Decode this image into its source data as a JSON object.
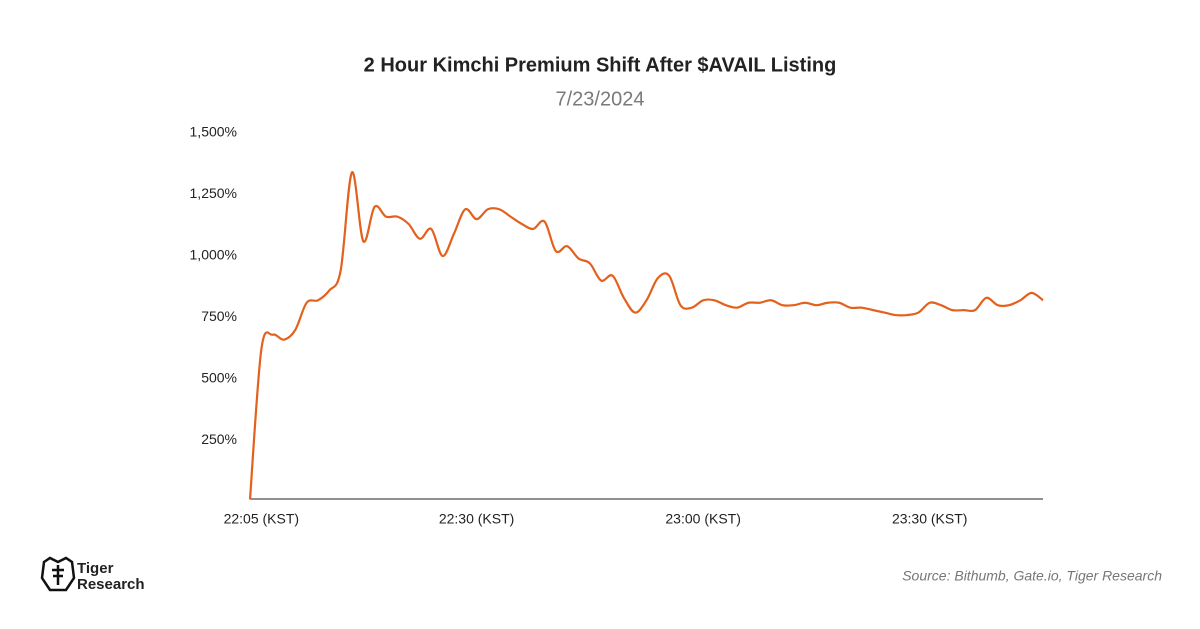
{
  "chart_data": {
    "type": "line",
    "title": "2 Hour Kimchi Premium Shift After $AVAIL Listing",
    "subtitle": "7/23/2024",
    "categories": [
      null,
      "22:05 (KST)",
      null,
      null,
      null,
      null,
      null,
      null,
      null,
      null,
      null,
      null,
      null,
      null,
      null,
      null,
      null,
      null,
      null,
      null,
      "22:30 (KST)",
      null,
      null,
      null,
      null,
      null,
      null,
      null,
      null,
      null,
      null,
      null,
      null,
      null,
      null,
      null,
      null,
      null,
      null,
      null,
      "23:00 (KST)",
      null,
      null,
      null,
      null,
      null,
      null,
      null,
      null,
      null,
      null,
      null,
      null,
      null,
      null,
      null,
      null,
      null,
      null,
      null,
      "23:30 (KST)",
      null,
      null,
      null,
      null,
      null,
      null,
      null,
      null,
      null,
      null
    ],
    "series": [
      {
        "color": "#e3611c",
        "values": [
          10,
          620,
          680,
          660,
          700,
          810,
          820,
          860,
          940,
          1340,
          1060,
          1200,
          1160,
          1160,
          1130,
          1070,
          1110,
          1000,
          1090,
          1190,
          1150,
          1190,
          1190,
          1160,
          1130,
          1110,
          1140,
          1020,
          1040,
          990,
          970,
          900,
          920,
          830,
          770,
          820,
          910,
          920,
          800,
          790,
          820,
          820,
          800,
          790,
          810,
          810,
          820,
          800,
          800,
          810,
          800,
          810,
          810,
          790,
          790,
          780,
          770,
          760,
          760,
          770,
          810,
          800,
          780,
          780,
          780,
          830,
          800,
          800,
          820,
          850,
          820
        ]
      }
    ],
    "ylim": [
      0,
      1500
    ],
    "yticks": [
      {
        "value": 250,
        "label": "250%"
      },
      {
        "value": 500,
        "label": "500%"
      },
      {
        "value": 750,
        "label": "750%"
      },
      {
        "value": 1000,
        "label": "1,000%"
      },
      {
        "value": 1250,
        "label": "1,250%"
      },
      {
        "value": 1500,
        "label": "1,500%"
      }
    ],
    "grid": false
  },
  "logo": {
    "line1": "Tiger",
    "line2": "Research"
  },
  "source": "Source: Bithumb, Gate.io, Tiger Research"
}
